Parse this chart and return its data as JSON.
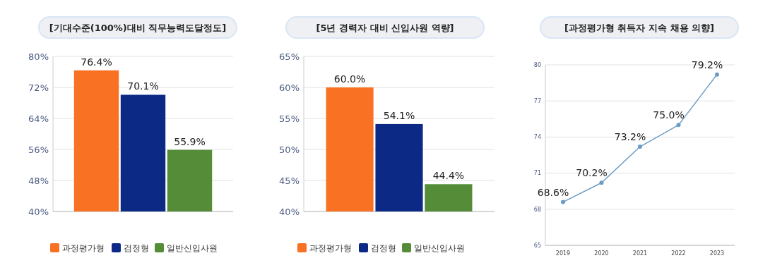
{
  "chart_data": [
    {
      "type": "bar",
      "title": "[기대수준(100%)대비 직무능력도달정도]",
      "categories": [
        null
      ],
      "series": [
        {
          "name": "과정평가형",
          "color": "#f97122",
          "values": [
            76.4
          ],
          "value_labels": [
            "76.4%"
          ]
        },
        {
          "name": "검정형",
          "color": "#0c2a85",
          "values": [
            70.1
          ],
          "value_labels": [
            "70.1%"
          ]
        },
        {
          "name": "일반신입사원",
          "color": "#548c37",
          "values": [
            55.9
          ],
          "value_labels": [
            "55.9%"
          ]
        }
      ],
      "ylim": [
        40,
        80
      ],
      "yticks": [
        {
          "value": 40,
          "label": "40%"
        },
        {
          "value": 48,
          "label": "48%"
        },
        {
          "value": 56,
          "label": "56%"
        },
        {
          "value": 64,
          "label": "64%"
        },
        {
          "value": 72,
          "label": "72%"
        },
        {
          "value": 80,
          "label": "80%"
        }
      ],
      "grid": "y",
      "legend": "bottom"
    },
    {
      "type": "bar",
      "title": "[5년 경력자 대비 신입사원 역량]",
      "categories": [
        null
      ],
      "series": [
        {
          "name": "과정평가형",
          "color": "#f97122",
          "values": [
            60.0
          ],
          "value_labels": [
            "60.0%"
          ]
        },
        {
          "name": "검정형",
          "color": "#0c2a85",
          "values": [
            54.1
          ],
          "value_labels": [
            "54.1%"
          ]
        },
        {
          "name": "일반신입사원",
          "color": "#548c37",
          "values": [
            44.4
          ],
          "value_labels": [
            "44.4%"
          ]
        }
      ],
      "ylim": [
        40,
        65
      ],
      "yticks": [
        {
          "value": 40,
          "label": "40%"
        },
        {
          "value": 45,
          "label": "45%"
        },
        {
          "value": 50,
          "label": "50%"
        },
        {
          "value": 55,
          "label": "55%"
        },
        {
          "value": 60,
          "label": "60%"
        },
        {
          "value": 65,
          "label": "65%"
        }
      ],
      "grid": "y",
      "legend": "bottom"
    },
    {
      "type": "line",
      "title": "[과정평가형 취득자 지속 채용 의향]",
      "categories": [
        "2019",
        "2020",
        "2021",
        "2022",
        "2023"
      ],
      "series": [
        {
          "color": "#6b9bc3",
          "values": [
            68.6,
            70.2,
            73.2,
            75.0,
            79.2
          ],
          "value_labels": [
            "68.6%",
            "70.2%",
            "73.2%",
            "75.0%",
            "79.2%"
          ]
        }
      ],
      "ylim": [
        65,
        80
      ],
      "yticks": [
        65,
        68,
        71,
        74,
        77,
        80
      ],
      "grid": "y",
      "marker": "circle"
    }
  ]
}
